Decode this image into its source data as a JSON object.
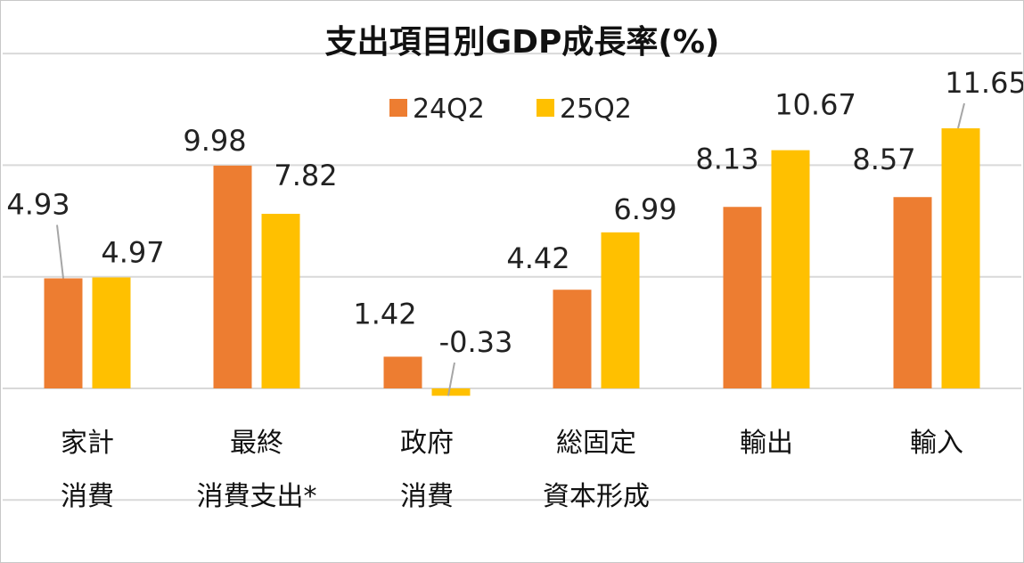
{
  "chart_data": {
    "type": "bar",
    "title": "支出項目別GDP成長率(%)",
    "categories": [
      [
        "家計",
        "消費"
      ],
      [
        "最終",
        "消費支出*"
      ],
      [
        "政府",
        "消費"
      ],
      [
        "総固定",
        "資本形成"
      ],
      [
        "輸出"
      ],
      [
        "輸入"
      ]
    ],
    "series": [
      {
        "name": "24Q2",
        "color": "#ED7D31",
        "values": [
          4.93,
          9.98,
          1.42,
          4.42,
          8.13,
          8.57
        ],
        "labels": [
          "4.93",
          "9.98",
          "1.42",
          "4.42",
          "8.13",
          "8.57"
        ]
      },
      {
        "name": "25Q2",
        "color": "#FFC000",
        "values": [
          4.97,
          7.82,
          -0.33,
          6.99,
          10.67,
          11.65
        ],
        "labels": [
          "4.97",
          "7.82",
          "-0.33",
          "6.99",
          "10.67",
          "11.65"
        ]
      }
    ],
    "ylim": [
      -8,
      15
    ],
    "gridline_step": 5,
    "grid": true,
    "legend": "top-center",
    "xlabel": "",
    "ylabel": ""
  }
}
